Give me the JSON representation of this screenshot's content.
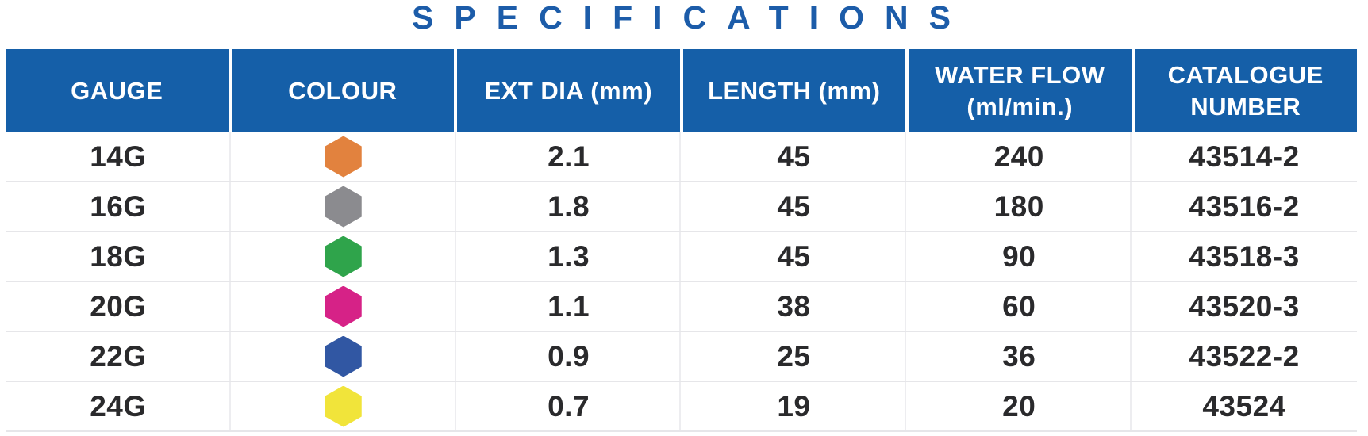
{
  "title": "SPECIFICATIONS",
  "colors": {
    "title_text": "#1C5CA9",
    "header_bg": "#155FA8",
    "header_text": "#FFFFFF",
    "body_text": "#2A2A2C",
    "row_divider": "#E6E6E9",
    "column_divider": "#EDEDF0"
  },
  "table": {
    "columns": [
      {
        "id": "gauge",
        "label": "GAUGE"
      },
      {
        "id": "colour",
        "label": "COLOUR"
      },
      {
        "id": "ext_dia",
        "label": "EXT DIA (mm)"
      },
      {
        "id": "length",
        "label": "LENGTH (mm)"
      },
      {
        "id": "water_flow",
        "label": "WATER FLOW\n(ml/min.)"
      },
      {
        "id": "catalogue",
        "label": "CATALOGUE\nNUMBER"
      }
    ],
    "rows": [
      {
        "gauge": "14G",
        "colour_name": "orange",
        "colour_hex": "#E2823E",
        "ext_dia": "2.1",
        "length": "45",
        "water_flow": "240",
        "catalogue": "43514-2"
      },
      {
        "gauge": "16G",
        "colour_name": "grey",
        "colour_hex": "#8B8B8F",
        "ext_dia": "1.8",
        "length": "45",
        "water_flow": "180",
        "catalogue": "43516-2"
      },
      {
        "gauge": "18G",
        "colour_name": "green",
        "colour_hex": "#2FA44B",
        "ext_dia": "1.3",
        "length": "45",
        "water_flow": "90",
        "catalogue": "43518-3"
      },
      {
        "gauge": "20G",
        "colour_name": "pink",
        "colour_hex": "#D62287",
        "ext_dia": "1.1",
        "length": "38",
        "water_flow": "60",
        "catalogue": "43520-3"
      },
      {
        "gauge": "22G",
        "colour_name": "blue",
        "colour_hex": "#3157A3",
        "ext_dia": "0.9",
        "length": "25",
        "water_flow": "36",
        "catalogue": "43522-2"
      },
      {
        "gauge": "24G",
        "colour_name": "yellow",
        "colour_hex": "#F1E43A",
        "ext_dia": "0.7",
        "length": "19",
        "water_flow": "20",
        "catalogue": "43524"
      }
    ]
  }
}
